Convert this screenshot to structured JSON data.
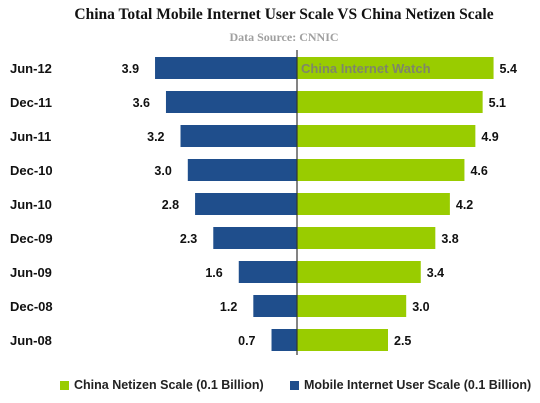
{
  "title": "China Total Mobile Internet User Scale VS China Netizen Scale",
  "subtitle": "Data Source: CNNIC",
  "watermark": "China Internet Watch",
  "chart_data": {
    "type": "bar",
    "orientation": "horizontal-diverging",
    "categories": [
      "Jun-12",
      "Dec-11",
      "Jun-11",
      "Dec-10",
      "Jun-10",
      "Dec-09",
      "Jun-09",
      "Dec-08",
      "Jun-08"
    ],
    "series": [
      {
        "name": "Mobile Internet User Scale (0.1 Billion)",
        "color": "#1f4e8c",
        "side": "left",
        "values": [
          3.9,
          3.6,
          3.2,
          3.0,
          2.8,
          2.3,
          1.6,
          1.2,
          0.7
        ]
      },
      {
        "name": "China Netizen Scale (0.1 Billion)",
        "color": "#99cc00",
        "side": "right",
        "values": [
          5.4,
          5.1,
          4.9,
          4.6,
          4.2,
          3.8,
          3.4,
          3.0,
          2.5
        ]
      }
    ],
    "grid": false,
    "legend_position": "bottom"
  },
  "legend": [
    {
      "label": "China Netizen Scale (0.1 Billion)",
      "color": "#99cc00"
    },
    {
      "label": "Mobile Internet User Scale (0.1 Billion)",
      "color": "#1f4e8c"
    }
  ]
}
